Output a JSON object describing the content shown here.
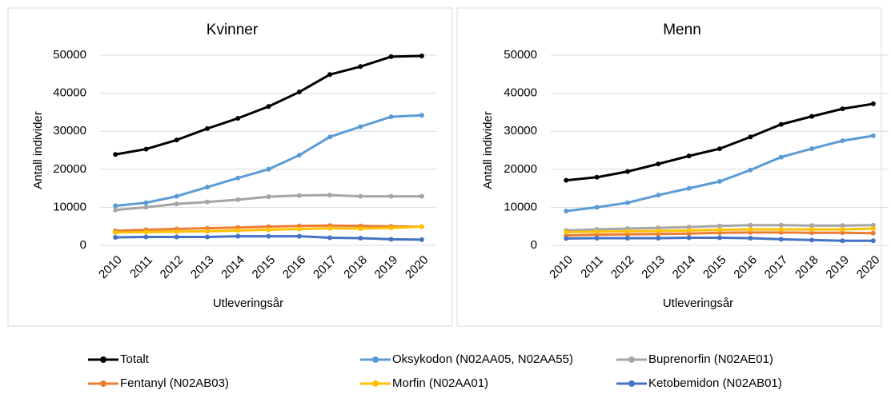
{
  "chart_data": [
    {
      "type": "line",
      "title": "Kvinner",
      "x_label": "Utleveringsår",
      "y_label": "Antall individer",
      "categories": [
        "2010",
        "2011",
        "2012",
        "2013",
        "2014",
        "2015",
        "2016",
        "2017",
        "2018",
        "2019",
        "2020"
      ],
      "ylim": [
        0,
        50000
      ],
      "yticks": [
        0,
        10000,
        20000,
        30000,
        40000,
        50000
      ],
      "grid": true,
      "series": [
        {
          "name": "Totalt",
          "color": "#000000",
          "values": [
            23900,
            25300,
            27700,
            30700,
            33400,
            36500,
            40300,
            44900,
            47000,
            49600,
            49800
          ]
        },
        {
          "name": "Oksykodon (N02AA05, N02AA55)",
          "color": "#5b9bd5",
          "values": [
            10400,
            11200,
            12900,
            15300,
            17700,
            20000,
            23700,
            28500,
            31200,
            33800,
            34200
          ]
        },
        {
          "name": "Buprenorfin (N02AE01)",
          "color": "#a5a5a5",
          "values": [
            9300,
            10000,
            10900,
            11400,
            12000,
            12800,
            13100,
            13200,
            12900,
            12900,
            12900
          ]
        },
        {
          "name": "Fentanyl (N02AB03)",
          "color": "#ed7d31",
          "values": [
            3800,
            4100,
            4300,
            4500,
            4700,
            4900,
            5100,
            5200,
            5100,
            5000,
            4900
          ]
        },
        {
          "name": "Morfin (N02AA01)",
          "color": "#ffc000",
          "values": [
            3400,
            3500,
            3600,
            3700,
            3900,
            4100,
            4300,
            4500,
            4400,
            4600,
            4900
          ]
        },
        {
          "name": "Ketobemidon (N02AB01)",
          "color": "#4472c4",
          "values": [
            2100,
            2200,
            2200,
            2200,
            2400,
            2400,
            2400,
            2000,
            1900,
            1600,
            1500
          ]
        }
      ]
    },
    {
      "type": "line",
      "title": "Menn",
      "x_label": "Utleveringsår",
      "y_label": "Antall individer",
      "categories": [
        "2010",
        "2011",
        "2012",
        "2013",
        "2014",
        "2015",
        "2016",
        "2017",
        "2018",
        "2019",
        "2020"
      ],
      "ylim": [
        0,
        50000
      ],
      "yticks": [
        0,
        10000,
        20000,
        30000,
        40000,
        50000
      ],
      "grid": true,
      "series": [
        {
          "name": "Totalt",
          "color": "#000000",
          "values": [
            17100,
            17900,
            19400,
            21400,
            23500,
            25400,
            28500,
            31800,
            33900,
            35900,
            37200
          ]
        },
        {
          "name": "Oksykodon (N02AA05, N02AA55)",
          "color": "#5b9bd5",
          "values": [
            9000,
            10000,
            11200,
            13200,
            15000,
            16800,
            19800,
            23200,
            25400,
            27500,
            28800
          ]
        },
        {
          "name": "Buprenorfin (N02AE01)",
          "color": "#a5a5a5",
          "values": [
            3900,
            4200,
            4400,
            4600,
            4800,
            5100,
            5300,
            5300,
            5200,
            5200,
            5300
          ]
        },
        {
          "name": "Fentanyl (N02AB03)",
          "color": "#ed7d31",
          "values": [
            2600,
            2800,
            2900,
            3000,
            3100,
            3300,
            3400,
            3400,
            3300,
            3300,
            3200
          ]
        },
        {
          "name": "Morfin (N02AA01)",
          "color": "#ffc000",
          "values": [
            3500,
            3600,
            3700,
            3800,
            3900,
            4100,
            4200,
            4200,
            4200,
            4200,
            4400
          ]
        },
        {
          "name": "Ketobemidon (N02AB01)",
          "color": "#4472c4",
          "values": [
            1800,
            1900,
            1900,
            1900,
            2000,
            2000,
            1900,
            1600,
            1400,
            1200,
            1200
          ]
        }
      ]
    }
  ]
}
